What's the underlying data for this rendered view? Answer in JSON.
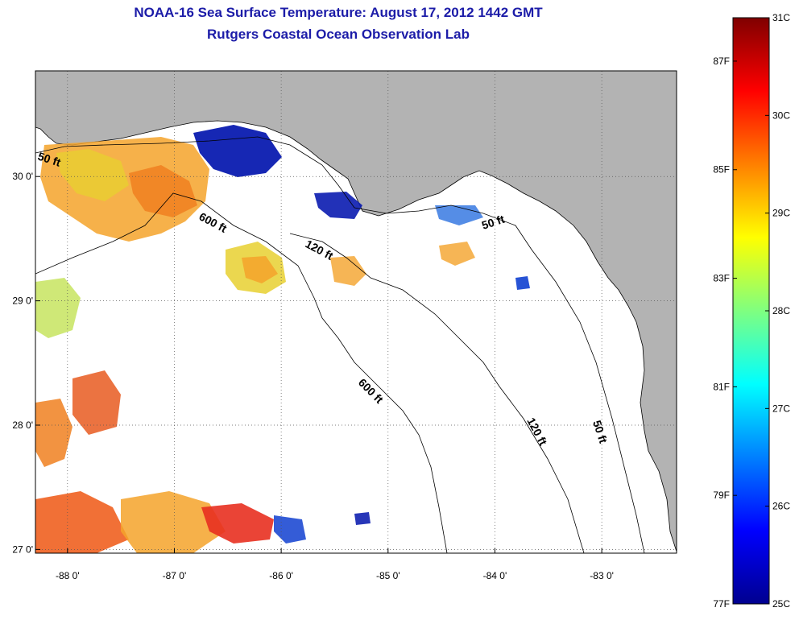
{
  "title": {
    "line1": "NOAA-16 Sea Surface Temperature:  August 17, 2012 1442 GMT",
    "line2": "Rutgers Coastal Ocean Observation Lab"
  },
  "map": {
    "lon_range": [
      -88.3,
      -82.3
    ],
    "lat_range": [
      26.97,
      30.85
    ],
    "lon_ticks": [
      -88,
      -87,
      -86,
      -85,
      -84,
      -83
    ],
    "lon_tick_labels": [
      "-88 0'",
      "-87 0'",
      "-86 0'",
      "-85 0'",
      "-84 0'",
      "-83 0'"
    ],
    "lat_ticks": [
      27,
      28,
      29,
      30
    ],
    "lat_tick_labels": [
      "27 0'",
      "28 0'",
      "29 0'",
      "30 0'"
    ],
    "grid": "dotted",
    "land_color": "#b3b3b3",
    "ocean_color": "#ffffff"
  },
  "contours": [
    {
      "label": "50 ft",
      "text": "50 ft"
    },
    {
      "label": "600 ft",
      "text": "600 ft"
    },
    {
      "label": "120 ft",
      "text": "120 ft"
    },
    {
      "label": "50 ft",
      "text": "50 ft"
    },
    {
      "label": "600 ft",
      "text": "600 ft"
    },
    {
      "label": "120 ft",
      "text": "120 ft"
    },
    {
      "label": "50 ft",
      "text": "50 ft"
    }
  ],
  "colorbar": {
    "range_c": [
      25,
      31
    ],
    "celsius_labels": [
      "31C",
      "30C",
      "29C",
      "28C",
      "27C",
      "26C",
      "25C"
    ],
    "fahrenheit_labels": [
      "87F",
      "85F",
      "83F",
      "81F",
      "79F",
      "77F"
    ],
    "celsius_values": [
      31,
      30,
      29,
      28,
      27,
      26,
      25
    ],
    "fahrenheit_values": [
      87,
      85,
      83,
      81,
      79,
      77
    ],
    "colormap": "jet"
  }
}
